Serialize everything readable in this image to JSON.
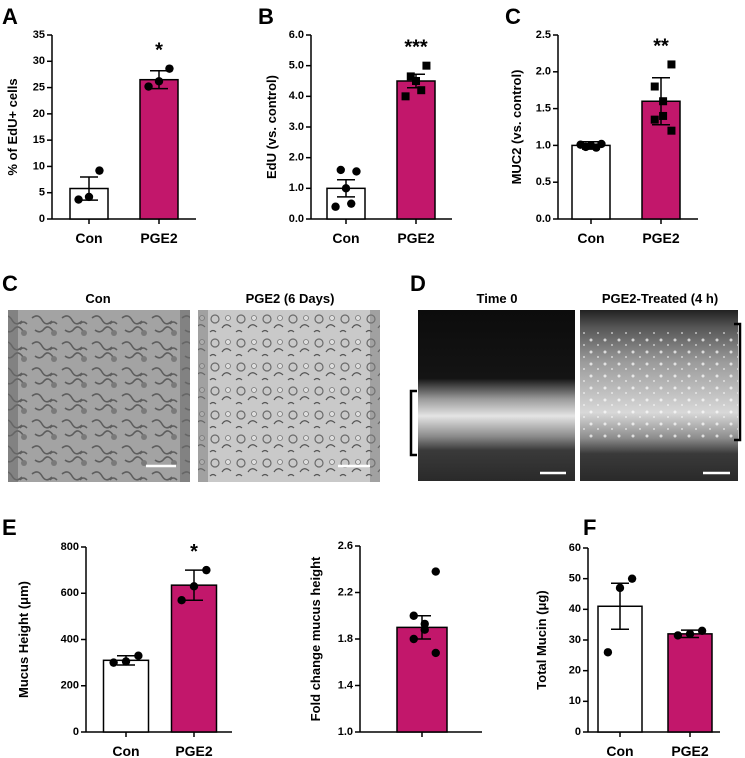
{
  "chart_data": [
    {
      "type": "bar",
      "panel": "A",
      "y_label": "% of EdU+ cells",
      "categories": [
        "Con",
        "PGE2"
      ],
      "values": [
        5.8,
        26.5
      ],
      "errors": [
        2.2,
        1.7
      ],
      "points": [
        [
          9.2,
          4.2,
          3.7
        ],
        [
          28.6,
          26.2,
          25.2
        ]
      ],
      "markers": [
        "circle",
        "circle"
      ],
      "colors": [
        "#ffffff",
        "#c2176b"
      ],
      "annotation": "*",
      "ylim": [
        0,
        35
      ],
      "yticks": [
        0,
        5,
        10,
        15,
        20,
        25,
        30,
        35
      ]
    },
    {
      "type": "bar",
      "panel": "B",
      "y_label": "EdU (vs. control)",
      "categories": [
        "Con",
        "PGE2"
      ],
      "values": [
        1.0,
        4.5
      ],
      "errors": [
        0.28,
        0.22
      ],
      "points": [
        [
          1.55,
          1.6,
          1.0,
          0.5,
          0.4
        ],
        [
          5.0,
          4.65,
          4.5,
          4.2,
          4.0
        ]
      ],
      "markers": [
        "circle",
        "square"
      ],
      "colors": [
        "#ffffff",
        "#c2176b"
      ],
      "annotation": "***",
      "ylim": [
        0,
        6
      ],
      "yticks": [
        {
          "value": 0,
          "label": "0.0"
        },
        {
          "value": 1,
          "label": "1.0"
        },
        {
          "value": 2,
          "label": "2.0"
        },
        {
          "value": 3,
          "label": "3.0"
        },
        {
          "value": 4,
          "label": "4.0"
        },
        {
          "value": 5,
          "label": "5.0"
        },
        {
          "value": 6,
          "label": "6.0"
        }
      ]
    },
    {
      "type": "bar",
      "panel": "C",
      "y_label": "MUC2 (vs. control)",
      "categories": [
        "Con",
        "PGE2"
      ],
      "values": [
        1.0,
        1.6
      ],
      "errors": [
        0.05,
        0.32
      ],
      "points": [
        [
          1.02,
          0.98,
          1.0,
          0.97,
          1.01
        ],
        [
          2.1,
          1.8,
          1.6,
          1.4,
          1.35,
          1.2
        ]
      ],
      "markers": [
        "circle",
        "square"
      ],
      "colors": [
        "#ffffff",
        "#c2176b"
      ],
      "annotation": "**",
      "ylim": [
        0,
        2.5
      ],
      "yticks": [
        {
          "value": 0,
          "label": "0.0"
        },
        {
          "value": 0.5,
          "label": "0.5"
        },
        {
          "value": 1,
          "label": "1.0"
        },
        {
          "value": 1.5,
          "label": "1.5"
        },
        {
          "value": 2,
          "label": "2.0"
        },
        {
          "value": 2.5,
          "label": "2.5"
        }
      ]
    },
    {
      "type": "bar",
      "panel": "E",
      "y_label": "Mucus Height (μm)",
      "categories": [
        "Con",
        "PGE2"
      ],
      "values": [
        310,
        635
      ],
      "errors": [
        20,
        65
      ],
      "points": [
        [
          330,
          305,
          300
        ],
        [
          700,
          630,
          570
        ]
      ],
      "markers": [
        "circle",
        "circle"
      ],
      "colors": [
        "#ffffff",
        "#c2176b"
      ],
      "annotation": "*",
      "ylim": [
        0,
        800
      ],
      "yticks": [
        0,
        200,
        400,
        600,
        800
      ]
    },
    {
      "type": "bar",
      "y_label": "Fold change mucus height",
      "categories": [
        null
      ],
      "values": [
        1.9
      ],
      "errors": [
        0.1
      ],
      "points": [
        [
          2.38,
          2.0,
          1.93,
          1.88,
          1.8,
          1.68
        ]
      ],
      "markers": [
        "circle"
      ],
      "colors": [
        "#c2176b"
      ],
      "ylim": [
        1.0,
        2.6
      ],
      "yticks": [
        {
          "value": 1.0,
          "label": "1.0"
        },
        {
          "value": 1.4,
          "label": "1.4"
        },
        {
          "value": 1.8,
          "label": "1.8"
        },
        {
          "value": 2.2,
          "label": "2.2"
        },
        {
          "value": 2.6,
          "label": "2.6"
        }
      ]
    },
    {
      "type": "bar",
      "panel": "F",
      "y_label": "Total Mucin (μg)",
      "categories": [
        "Con",
        "PGE2"
      ],
      "values": [
        41,
        32
      ],
      "errors": [
        7.5,
        1.2
      ],
      "points": [
        [
          50,
          47,
          26
        ],
        [
          33,
          32,
          31.5
        ]
      ],
      "markers": [
        "circle",
        "circle"
      ],
      "colors": [
        "#ffffff",
        "#c2176b"
      ],
      "ylim": [
        0,
        60
      ],
      "yticks": [
        0,
        10,
        20,
        30,
        40,
        50,
        60
      ]
    }
  ],
  "image_panels": [
    {
      "panel": "C",
      "labels": [
        "Con",
        "PGE2 (6 Days)"
      ]
    },
    {
      "panel": "D",
      "labels": [
        "Time 0",
        "PGE2-Treated (4 h)"
      ]
    }
  ]
}
